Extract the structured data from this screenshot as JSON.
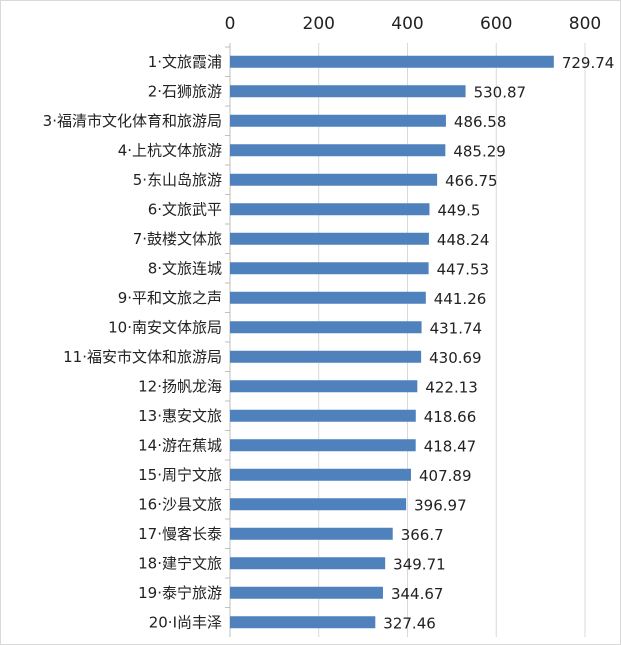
{
  "chart_data": {
    "type": "bar",
    "orientation": "horizontal",
    "title": "",
    "xlabel": "",
    "ylabel": "",
    "xlim": [
      0,
      800
    ],
    "ticks": [
      0,
      200,
      400,
      600,
      800
    ],
    "tick_position": "top",
    "grid": true,
    "legend": "none",
    "bar_color": "#4f81bd",
    "categories": [
      "1·文旅霞浦",
      "2·石狮旅游",
      "3·福清市文化体育和旅游局",
      "4·上杭文体旅游",
      "5·东山岛旅游",
      "6·文旅武平",
      "7·鼓楼文体旅",
      "8·文旅连城",
      "9·平和文旅之声",
      "10·南安文体旅局",
      "11·福安市文体和旅游局",
      "12·扬帆龙海",
      "13·惠安文旅",
      "14·游在蕉城",
      "15·周宁文旅",
      "16·沙县文旅",
      "17·慢客长泰",
      "18·建宁文旅",
      "19·泰宁旅游",
      "20·I尚丰泽"
    ],
    "values": [
      729.74,
      530.87,
      486.58,
      485.29,
      466.75,
      449.5,
      448.24,
      447.53,
      441.26,
      431.74,
      430.69,
      422.13,
      418.66,
      418.47,
      407.89,
      396.97,
      366.7,
      349.71,
      344.67,
      327.46
    ]
  }
}
